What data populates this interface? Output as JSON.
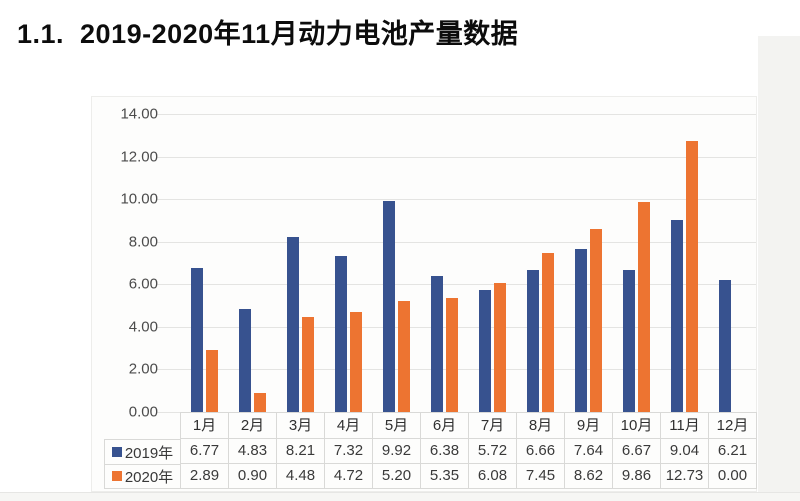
{
  "page": {
    "title": "1.1.  2019-2020年11月动力电池产量数据"
  },
  "chart_data": {
    "type": "bar",
    "title": "2019-2020年11月动力电池产量数据",
    "xlabel": "",
    "ylabel": "",
    "categories": [
      "1月",
      "2月",
      "3月",
      "4月",
      "5月",
      "6月",
      "7月",
      "8月",
      "9月",
      "10月",
      "11月",
      "12月"
    ],
    "series": [
      {
        "name": "2019年",
        "color": "#37528F",
        "values": [
          6.77,
          4.83,
          8.21,
          7.32,
          9.92,
          6.38,
          5.72,
          6.66,
          7.64,
          6.67,
          9.04,
          6.21
        ]
      },
      {
        "name": "2020年",
        "color": "#ED7431",
        "values": [
          2.89,
          0.9,
          4.48,
          4.72,
          5.2,
          5.35,
          6.08,
          7.45,
          8.62,
          9.86,
          12.73,
          0.0
        ]
      }
    ],
    "ylim": [
      0,
      14
    ],
    "ytick_step": 2,
    "ytick_labels": [
      "0.00",
      "2.00",
      "4.00",
      "6.00",
      "8.00",
      "10.00",
      "12.00",
      "14.00"
    ],
    "value_decimals": 2,
    "grid": true,
    "legend_position": "data-table-left",
    "style": {
      "gridline_color": "#e4e4e2",
      "table_border_color": "#d9d9d7",
      "axis_text_color": "#4b4b4b",
      "table_text_color": "#3a3a3a"
    }
  }
}
